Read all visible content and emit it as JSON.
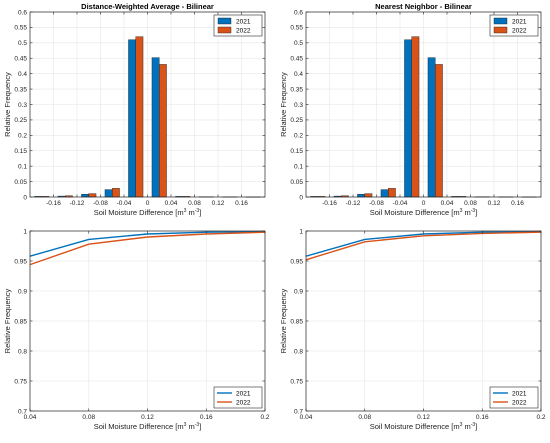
{
  "colors": {
    "series_2021": "#0072BD",
    "series_2022": "#D95319",
    "grid": "#e6e6e6",
    "axis": "#262626"
  },
  "chart_data": [
    {
      "id": "hist-dwa",
      "type": "bar",
      "title": "Distance-Weighted Average - Bilinear",
      "xlabel": "Soil Moisture Difference [m",
      "xlabel_sup1": "3",
      "xlabel_mid": " m",
      "xlabel_sup2": "-3",
      "xlabel_end": "]",
      "ylabel": "Relative Frequency",
      "xlim": [
        -0.2,
        0.2
      ],
      "ylim": [
        0,
        0.6
      ],
      "xticks": [
        -0.16,
        -0.12,
        -0.08,
        -0.04,
        0,
        0.04,
        0.08,
        0.12,
        0.16
      ],
      "xtick_labels": [
        "-0.16",
        "-0.12",
        "-0.08",
        "-0.04",
        "0",
        "0.04",
        "0.08",
        "0.12",
        "0.16"
      ],
      "yticks": [
        0,
        0.05,
        0.1,
        0.15,
        0.2,
        0.25,
        0.3,
        0.35,
        0.4,
        0.45,
        0.5,
        0.55,
        0.6
      ],
      "ytick_labels": [
        "0",
        "0.05",
        "0.1",
        "0.15",
        "0.2",
        "0.25",
        "0.3",
        "0.35",
        "0.4",
        "0.45",
        "0.5",
        "0.55",
        "0.6"
      ],
      "categories": [
        -0.18,
        -0.14,
        -0.1,
        -0.06,
        -0.02,
        0.02,
        0.06,
        0.1,
        0.14,
        0.18
      ],
      "series": [
        {
          "name": "2021",
          "values": [
            0.002,
            0.003,
            0.009,
            0.024,
            0.51,
            0.452,
            0.002,
            0.001,
            0.0005,
            0.0003
          ]
        },
        {
          "name": "2022",
          "values": [
            0.002,
            0.004,
            0.011,
            0.028,
            0.52,
            0.43,
            0.002,
            0.001,
            0.0005,
            0.0003
          ]
        }
      ],
      "legend": "top-right",
      "grid": true
    },
    {
      "id": "hist-nn",
      "type": "bar",
      "title": "Nearest Neighbor - Bilinear",
      "xlabel": "Soil Moisture Difference [m",
      "xlabel_sup1": "3",
      "xlabel_mid": " m",
      "xlabel_sup2": "-3",
      "xlabel_end": "]",
      "ylabel": "Relative Frequency",
      "xlim": [
        -0.2,
        0.2
      ],
      "ylim": [
        0,
        0.6
      ],
      "xticks": [
        -0.16,
        -0.12,
        -0.08,
        -0.04,
        0,
        0.04,
        0.08,
        0.12,
        0.16
      ],
      "xtick_labels": [
        "-0.16",
        "-0.12",
        "-0.08",
        "-0.04",
        "0",
        "0.04",
        "0.08",
        "0.12",
        "0.16"
      ],
      "yticks": [
        0,
        0.05,
        0.1,
        0.15,
        0.2,
        0.25,
        0.3,
        0.35,
        0.4,
        0.45,
        0.5,
        0.55,
        0.6
      ],
      "ytick_labels": [
        "0",
        "0.05",
        "0.1",
        "0.15",
        "0.2",
        "0.25",
        "0.3",
        "0.35",
        "0.4",
        "0.45",
        "0.5",
        "0.55",
        "0.6"
      ],
      "categories": [
        -0.18,
        -0.14,
        -0.1,
        -0.06,
        -0.02,
        0.02,
        0.06,
        0.1,
        0.14,
        0.18
      ],
      "series": [
        {
          "name": "2021",
          "values": [
            0.002,
            0.003,
            0.009,
            0.024,
            0.51,
            0.452,
            0.002,
            0.001,
            0.0005,
            0.0003
          ]
        },
        {
          "name": "2022",
          "values": [
            0.002,
            0.004,
            0.011,
            0.028,
            0.52,
            0.43,
            0.002,
            0.001,
            0.0005,
            0.0003
          ]
        }
      ],
      "legend": "top-right",
      "grid": true
    },
    {
      "id": "cdf-dwa",
      "type": "line",
      "title": "",
      "xlabel": "Soil Moisture Difference [m",
      "xlabel_sup1": "3",
      "xlabel_mid": " m",
      "xlabel_sup2": "-3",
      "xlabel_end": "]",
      "ylabel": "Relative Frequency",
      "xlim": [
        0.04,
        0.2
      ],
      "ylim": [
        0.7,
        1
      ],
      "xticks": [
        0.04,
        0.08,
        0.12,
        0.16,
        0.2
      ],
      "xtick_labels": [
        "0.04",
        "0.08",
        "0.12",
        "0.16",
        "0.2"
      ],
      "yticks": [
        0.7,
        0.75,
        0.8,
        0.85,
        0.9,
        0.95,
        1
      ],
      "ytick_labels": [
        "0.7",
        "0.75",
        "0.8",
        "0.85",
        "0.9",
        "0.95",
        "1"
      ],
      "x": [
        0.04,
        0.08,
        0.12,
        0.16,
        0.2
      ],
      "series": [
        {
          "name": "2021",
          "values": [
            0.958,
            0.986,
            0.995,
            0.998,
            0.999
          ]
        },
        {
          "name": "2022",
          "values": [
            0.944,
            0.978,
            0.99,
            0.995,
            0.998
          ]
        }
      ],
      "legend": "bottom-right",
      "grid": true
    },
    {
      "id": "cdf-nn",
      "type": "line",
      "title": "",
      "xlabel": "Soil Moisture Difference [m",
      "xlabel_sup1": "3",
      "xlabel_mid": " m",
      "xlabel_sup2": "-3",
      "xlabel_end": "]",
      "ylabel": "Relative Frequency",
      "xlim": [
        0.04,
        0.2
      ],
      "ylim": [
        0.7,
        1
      ],
      "xticks": [
        0.04,
        0.08,
        0.12,
        0.16,
        0.2
      ],
      "xtick_labels": [
        "0.04",
        "0.08",
        "0.12",
        "0.16",
        "0.2"
      ],
      "yticks": [
        0.7,
        0.75,
        0.8,
        0.85,
        0.9,
        0.95,
        1
      ],
      "ytick_labels": [
        "0.7",
        "0.75",
        "0.8",
        "0.85",
        "0.9",
        "0.95",
        "1"
      ],
      "x": [
        0.04,
        0.08,
        0.12,
        0.16,
        0.2
      ],
      "series": [
        {
          "name": "2021",
          "values": [
            0.958,
            0.986,
            0.995,
            0.998,
            0.999
          ]
        },
        {
          "name": "2022",
          "values": [
            0.952,
            0.982,
            0.992,
            0.996,
            0.998
          ]
        }
      ],
      "legend": "bottom-right",
      "grid": true
    }
  ]
}
